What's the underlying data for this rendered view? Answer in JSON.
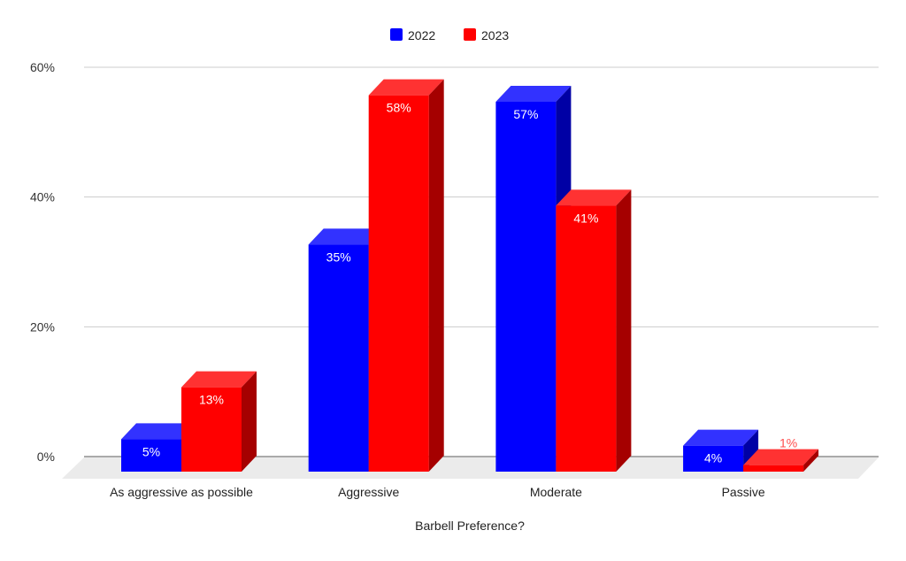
{
  "chart_data": {
    "type": "bar",
    "style": "3d-clustered",
    "title": "",
    "xlabel": "Barbell Preference?",
    "ylabel": "",
    "categories": [
      "As aggressive as possible",
      "Aggressive",
      "Moderate",
      "Passive"
    ],
    "series": [
      {
        "name": "2022",
        "values": [
          5,
          35,
          57,
          4
        ],
        "labels": [
          "5%",
          "35%",
          "57%",
          "4%"
        ],
        "color": "#0000ff"
      },
      {
        "name": "2023",
        "values": [
          13,
          58,
          41,
          1
        ],
        "labels": [
          "13%",
          "58%",
          "41%",
          "1%"
        ],
        "color": "#ff0000"
      }
    ],
    "ylim": [
      0,
      60
    ],
    "yticks": [
      0,
      20,
      40,
      60
    ],
    "ytick_labels": [
      "0%",
      "20%",
      "40%",
      "60%"
    ],
    "grid": true,
    "legend": "top-center"
  }
}
